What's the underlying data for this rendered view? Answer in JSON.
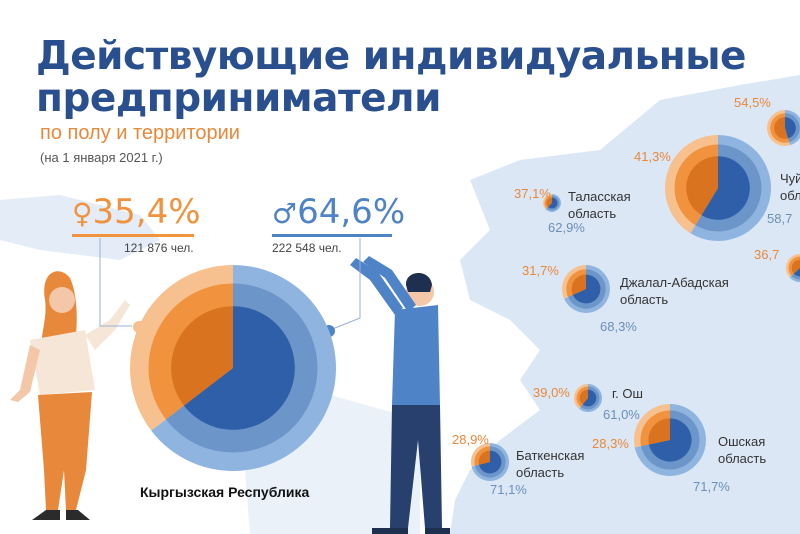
{
  "header": {
    "title_line1": "Действующие индивидуальные",
    "title_line2": "предприниматели",
    "subtitle": "по полу и территории",
    "date": "(на 1 января 2021 г.)"
  },
  "colors": {
    "female": "#f0923e",
    "female_light": "#f7c08f",
    "male": "#2f5fa8",
    "male_light": "#8fb4df",
    "map": "#dce7f5",
    "title": "#2a4f8f"
  },
  "chart_data": {
    "type": "pie",
    "series_names": [
      "женщины",
      "мужчины"
    ],
    "national": {
      "name": "Кыргызская Республика",
      "female_pct": "35,4%",
      "male_pct": "64,6%",
      "female_count": "121 876 чел.",
      "male_count": "222 548 чел.",
      "female_value": 35.4,
      "male_value": 64.6
    },
    "regions": [
      {
        "name": "Таласская\nобласть",
        "female_pct": "37,1%",
        "male_pct": "62,9%",
        "female_value": 37.1,
        "male_value": 62.9
      },
      {
        "name": "Джалал-Абадская\nобласть",
        "female_pct": "31,7%",
        "male_pct": "68,3%",
        "female_value": 31.7,
        "male_value": 68.3
      },
      {
        "name": "г. Ош",
        "female_pct": "39,0%",
        "male_pct": "61,0%",
        "female_value": 39.0,
        "male_value": 61.0
      },
      {
        "name": "Баткенская\nобласть",
        "female_pct": "28,9%",
        "male_pct": "71,1%",
        "female_value": 28.9,
        "male_value": 71.1
      },
      {
        "name": "Ошская\nобласть",
        "female_pct": "28,3%",
        "male_pct": "71,7%",
        "female_value": 28.3,
        "male_value": 71.7
      },
      {
        "name": "Чуй\nобл",
        "female_pct": "41,3%",
        "male_pct": "58,7",
        "female_value": 41.3,
        "male_value": 58.7
      },
      {
        "name": "",
        "female_pct": "54,5%",
        "male_pct": "",
        "female_value": 54.5,
        "male_value": 45.5
      },
      {
        "name": "",
        "female_pct": "36,7",
        "male_pct": "",
        "female_value": 36.7,
        "male_value": 63.3
      }
    ]
  }
}
